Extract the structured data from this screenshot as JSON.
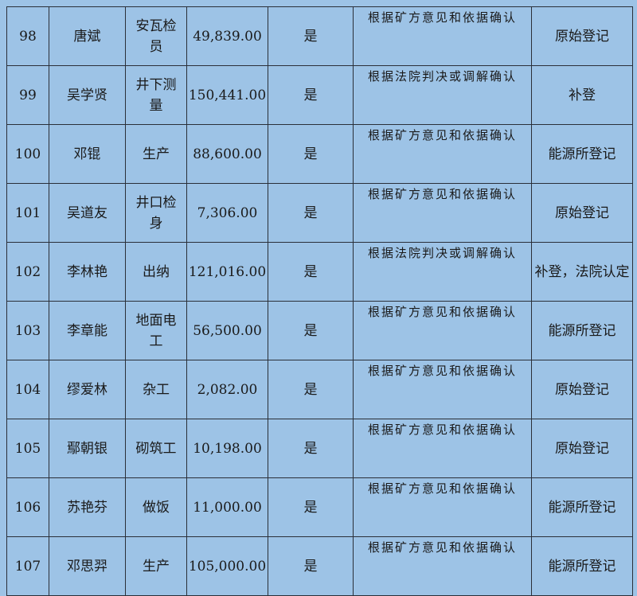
{
  "rows": [
    {
      "no": "98",
      "name": "唐斌",
      "job": "安瓦检员",
      "amount": "49,839.00",
      "flag": "是",
      "basis": "根据矿方意见和依据确认",
      "note": "原始登记"
    },
    {
      "no": "99",
      "name": "吴学贤",
      "job": "井下测量",
      "amount": "150,441.00",
      "flag": "是",
      "basis": "根据法院判决或调解确认",
      "note": "补登"
    },
    {
      "no": "100",
      "name": "邓锟",
      "job": "生产",
      "amount": "88,600.00",
      "flag": "是",
      "basis": "根据矿方意见和依据确认",
      "note": "能源所登记"
    },
    {
      "no": "101",
      "name": "吴道友",
      "job": "井口检身",
      "amount": "7,306.00",
      "flag": "是",
      "basis": "根据矿方意见和依据确认",
      "note": "原始登记"
    },
    {
      "no": "102",
      "name": "李林艳",
      "job": "出纳",
      "amount": "121,016.00",
      "flag": "是",
      "basis": "根据法院判决或调解确认",
      "note": "补登，法院认定"
    },
    {
      "no": "103",
      "name": "李章能",
      "job": "地面电工",
      "amount": "56,500.00",
      "flag": "是",
      "basis": "根据矿方意见和依据确认",
      "note": "能源所登记"
    },
    {
      "no": "104",
      "name": "缪爱林",
      "job": "杂工",
      "amount": "2,082.00",
      "flag": "是",
      "basis": "根据矿方意见和依据确认",
      "note": "原始登记"
    },
    {
      "no": "105",
      "name": "鄢朝银",
      "job": "砌筑工",
      "amount": "10,198.00",
      "flag": "是",
      "basis": "根据矿方意见和依据确认",
      "note": "原始登记"
    },
    {
      "no": "106",
      "name": "苏艳芬",
      "job": "做饭",
      "amount": "11,000.00",
      "flag": "是",
      "basis": "根据矿方意见和依据确认",
      "note": "能源所登记"
    },
    {
      "no": "107",
      "name": "邓思羿",
      "job": "生产",
      "amount": "105,000.00",
      "flag": "是",
      "basis": "根据矿方意见和依据确认",
      "note": "能源所登记"
    }
  ]
}
